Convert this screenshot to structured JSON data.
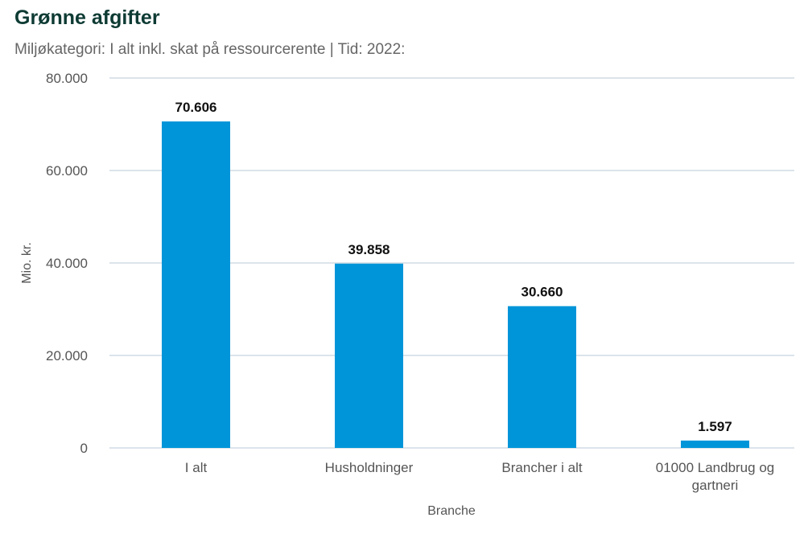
{
  "title": "Grønne afgifter",
  "subtitle": "Miljøkategori: I alt inkl. skat på ressourcerente | Tid: 2022:",
  "colors": {
    "bar": "#0095d9",
    "grid": "#b8c8d4",
    "title": "#0e3b34"
  },
  "chart_data": {
    "type": "bar",
    "categories": [
      "I alt",
      "Husholdninger",
      "Brancher i alt",
      "01000 Landbrug og gartneri"
    ],
    "category_label_lines": [
      [
        "I alt"
      ],
      [
        "Husholdninger"
      ],
      [
        "Brancher i alt"
      ],
      [
        "01000 Landbrug og",
        "gartneri"
      ]
    ],
    "values": [
      70606,
      39858,
      30660,
      1597
    ],
    "value_labels": [
      "70.606",
      "39.858",
      "30.660",
      "1.597"
    ],
    "xlabel": "Branche",
    "ylabel": "Mio. kr.",
    "ylim": [
      0,
      80000
    ],
    "yticks": [
      0,
      20000,
      40000,
      60000,
      80000
    ],
    "ytick_labels": [
      "0",
      "20.000",
      "40.000",
      "60.000",
      "80.000"
    ],
    "grid": true,
    "legend": "none"
  }
}
